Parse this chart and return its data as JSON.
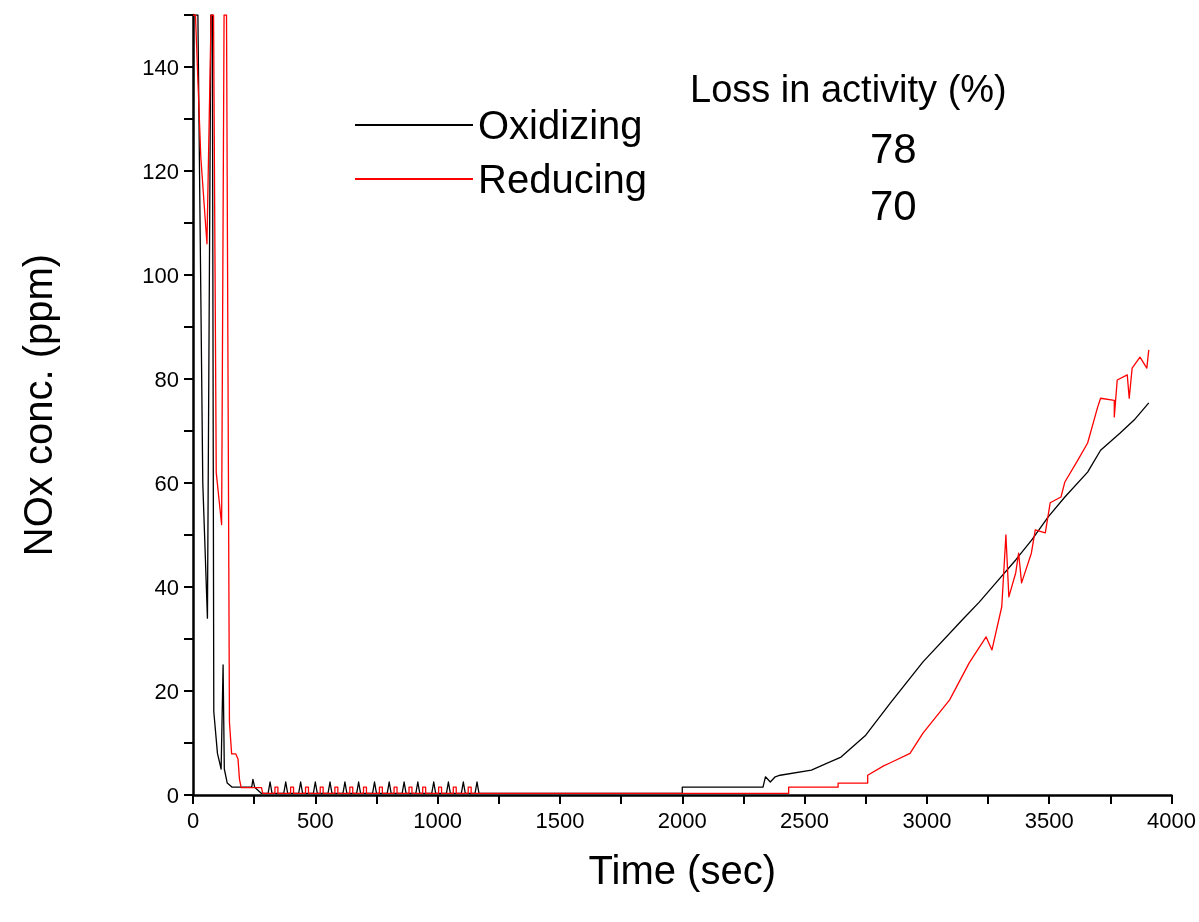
{
  "chart_data": {
    "type": "line",
    "xlabel": "Time (sec)",
    "ylabel": "NOx conc. (ppm)",
    "xlim": [
      0,
      4000
    ],
    "ylim": [
      0,
      150
    ],
    "xticks": [
      0,
      {
        "value": 250,
        "label": null
      },
      500,
      {
        "value": 750,
        "label": null
      },
      1000,
      {
        "value": 1250,
        "label": null
      },
      1500,
      {
        "value": 1750,
        "label": null
      },
      2000,
      {
        "value": 2250,
        "label": null
      },
      2500,
      {
        "value": 2750,
        "label": null
      },
      3000,
      {
        "value": 3250,
        "label": null
      },
      3500,
      {
        "value": 3750,
        "label": null
      },
      4000
    ],
    "yticks": [
      0,
      {
        "value": 10,
        "label": null
      },
      20,
      {
        "value": 30,
        "label": null
      },
      40,
      {
        "value": 50,
        "label": null
      },
      60,
      {
        "value": 70,
        "label": null
      },
      80,
      {
        "value": 90,
        "label": null
      },
      100,
      {
        "value": 110,
        "label": null
      },
      120,
      {
        "value": 130,
        "label": null
      },
      140,
      {
        "value": 150,
        "label": null
      }
    ],
    "grid": false,
    "legend": "top",
    "marker": "none",
    "line_style": "solid",
    "annotations": [
      "Loss in activity (%)",
      "78",
      "70"
    ],
    "series": [
      {
        "name": "Oxidizing",
        "color": "#000000",
        "x": [
          0,
          20,
          40,
          59,
          73,
          79,
          85,
          100,
          115,
          123,
          128,
          140,
          160,
          240,
          245,
          252,
          280,
          307,
          315,
          323,
          371,
          379,
          387,
          432,
          440,
          448,
          492,
          500,
          508,
          552,
          560,
          568,
          613,
          621,
          629,
          669,
          677,
          685,
          734,
          742,
          750,
          794,
          802,
          810,
          855,
          863,
          871,
          911,
          919,
          927,
          976,
          984,
          992,
          1036,
          1044,
          1052,
          1097,
          1105,
          1113,
          1153,
          1161,
          1169,
          2000,
          2000,
          2330,
          2340,
          2360,
          2380,
          2400,
          2528,
          2649,
          2750,
          2851,
          2984,
          3145,
          3214,
          3282,
          3363,
          3428,
          3496,
          3564,
          3657,
          3710,
          3790,
          3847,
          3907
        ],
        "values": [
          150,
          150,
          60,
          34,
          150,
          150,
          16,
          8,
          5,
          25,
          5,
          2.3,
          1.5,
          1.5,
          3,
          1.5,
          0.3,
          0.3,
          2.5,
          0.3,
          0.3,
          2.5,
          0.3,
          0.3,
          2.5,
          0.3,
          0.3,
          2.5,
          0.3,
          0.3,
          2.5,
          0.3,
          0.3,
          2.5,
          0.3,
          0.3,
          2.5,
          0.3,
          0.3,
          2.5,
          0.3,
          0.3,
          2.5,
          0.3,
          0.3,
          2.5,
          0.3,
          0.3,
          2.5,
          0.3,
          0.3,
          2.5,
          0.3,
          0.3,
          2.5,
          0.3,
          0.3,
          2.5,
          0.3,
          0.3,
          2.5,
          0.3,
          0.3,
          1.5,
          1.5,
          3.5,
          2.5,
          3.5,
          3.8,
          4.8,
          7.3,
          11.5,
          17.7,
          25.6,
          33.7,
          37.1,
          40.8,
          45.2,
          49,
          53.5,
          57.3,
          62.1,
          66.3,
          69.6,
          72.1,
          75.4
        ]
      },
      {
        "name": "Reducing",
        "color": "#ff0000",
        "x": [
          0,
          10,
          32,
          57,
          74,
          84,
          95,
          117,
          127,
          137,
          149,
          158,
          175,
          184,
          190,
          197,
          280,
          285,
          335,
          335,
          347,
          347,
          399,
          399,
          411,
          411,
          460,
          460,
          472,
          472,
          520,
          520,
          532,
          532,
          580,
          580,
          592,
          592,
          641,
          641,
          653,
          653,
          697,
          697,
          709,
          709,
          762,
          762,
          774,
          774,
          822,
          822,
          834,
          834,
          883,
          883,
          895,
          895,
          939,
          939,
          951,
          951,
          1004,
          1004,
          1016,
          1016,
          1064,
          1064,
          1076,
          1076,
          1125,
          1125,
          1137,
          1137,
          2435,
          2435,
          2637,
          2637,
          2758,
          2758,
          2823,
          2851,
          2931,
          2984,
          3093,
          3173,
          3242,
          3266,
          3306,
          3323,
          3335,
          3363,
          3375,
          3387,
          3427,
          3443,
          3484,
          3504,
          3548,
          3564,
          3617,
          3657,
          3698,
          3710,
          3766,
          3766,
          3778,
          3819,
          3827,
          3839,
          3871,
          3899,
          3907
        ],
        "values": [
          150,
          150,
          122.6,
          106,
          150,
          150,
          62,
          52,
          150,
          150,
          14,
          7.9,
          7.9,
          6.9,
          3,
          1.4,
          1.4,
          0.3,
          0.3,
          1.5,
          1.5,
          0.3,
          0.3,
          1.5,
          1.5,
          0.3,
          0.3,
          1.5,
          1.5,
          0.3,
          0.3,
          1.5,
          1.5,
          0.3,
          0.3,
          1.5,
          1.5,
          0.3,
          0.3,
          1.5,
          1.5,
          0.3,
          0.3,
          1.5,
          1.5,
          0.3,
          0.3,
          1.5,
          1.5,
          0.3,
          0.3,
          1.5,
          1.5,
          0.3,
          0.3,
          1.5,
          1.5,
          0.3,
          0.3,
          1.5,
          1.5,
          0.3,
          0.3,
          1.5,
          1.5,
          0.3,
          0.3,
          1.5,
          1.5,
          0.3,
          0.3,
          1.5,
          1.5,
          0.3,
          0.3,
          1.5,
          1.5,
          2.3,
          2.3,
          3.8,
          5.6,
          6.2,
          8,
          11.9,
          18.3,
          25.4,
          30.4,
          27.9,
          36.2,
          50,
          38.1,
          42.7,
          46.5,
          40.8,
          46.5,
          51,
          50.4,
          56.2,
          57.3,
          60.2,
          64.4,
          67.7,
          74.6,
          76.3,
          75.9,
          72.7,
          79.8,
          80.8,
          76.3,
          82.1,
          84.2,
          82.1,
          85.6
        ]
      }
    ]
  }
}
